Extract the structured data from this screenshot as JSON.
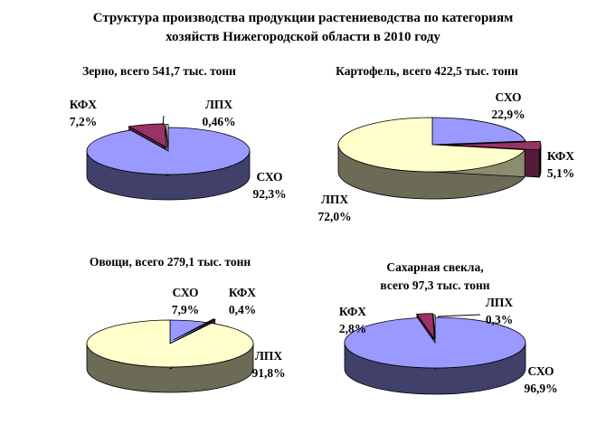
{
  "title": {
    "line1": "Структура производства продукции растениеводства по категориям",
    "line2": "хозяйств Нижегородской области в 2010 году"
  },
  "colors": {
    "СХО": "#9999ff",
    "КФХ": "#993366",
    "ЛПХ": "#ffffcc"
  },
  "chart_data": [
    {
      "type": "pie",
      "title": "Зерно, всего 541,7 тыс. тонн",
      "slices": [
        {
          "label": "СХО",
          "value": 92.3,
          "text": "92,3%"
        },
        {
          "label": "КФХ",
          "value": 7.2,
          "text": "7,2%"
        },
        {
          "label": "ЛПХ",
          "value": 0.46,
          "text": "0,46%"
        }
      ]
    },
    {
      "type": "pie",
      "title": "Картофель, всего 422,5 тыс. тонн",
      "slices": [
        {
          "label": "СХО",
          "value": 22.9,
          "text": "22,9%"
        },
        {
          "label": "КФХ",
          "value": 5.1,
          "text": "5,1%"
        },
        {
          "label": "ЛПХ",
          "value": 72.0,
          "text": "72,0%"
        }
      ]
    },
    {
      "type": "pie",
      "title": "Овощи, всего 279,1 тыс. тонн",
      "slices": [
        {
          "label": "СХО",
          "value": 7.9,
          "text": "7,9%"
        },
        {
          "label": "КФХ",
          "value": 0.4,
          "text": "0,4%"
        },
        {
          "label": "ЛПХ",
          "value": 91.8,
          "text": "91,8%"
        }
      ]
    },
    {
      "type": "pie",
      "title": "Сахарная свекла,\nвсего 97,3 тыс. тонн",
      "slices": [
        {
          "label": "СХО",
          "value": 96.9,
          "text": "96,9%"
        },
        {
          "label": "КФХ",
          "value": 2.8,
          "text": "2,8%"
        },
        {
          "label": "ЛПХ",
          "value": 0.3,
          "text": "0,3%"
        }
      ]
    }
  ]
}
